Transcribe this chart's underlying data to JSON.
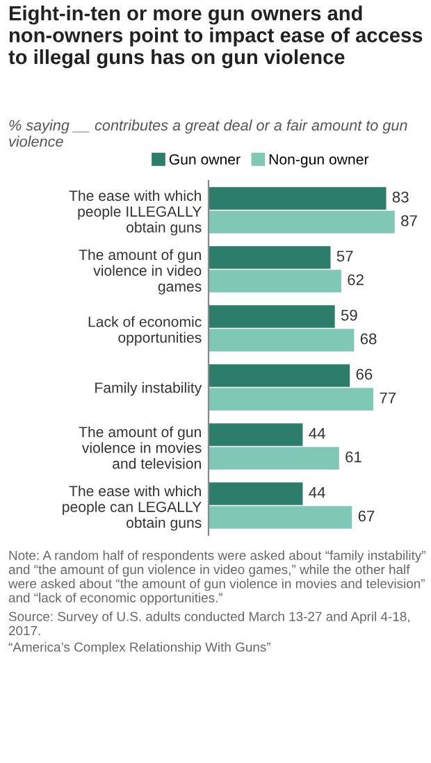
{
  "chart_data": {
    "type": "bar",
    "orientation": "horizontal",
    "title": "Eight-in-ten or more gun owners and non-owners point to impact ease of access to illegal guns has on gun violence",
    "subtitle": "% saying __ contributes a great deal or a fair amount to gun violence",
    "categories": [
      "The ease with which\npeople ILLEGALLY\nobtain guns",
      "The amount of gun\nviolence in video\ngames",
      "Lack of economic\nopportunities",
      "Family instability",
      "The amount of gun\nviolence in movies\nand television",
      "The ease with which\npeople can LEGALLY\nobtain guns"
    ],
    "series": [
      {
        "name": "Gun owner",
        "color": "#2d7d6b",
        "values": [
          83,
          57,
          59,
          66,
          44,
          44
        ]
      },
      {
        "name": "Non-gun owner",
        "color": "#7fc8b5",
        "values": [
          87,
          62,
          68,
          77,
          61,
          67
        ]
      }
    ],
    "data_labels": true,
    "legend": "top",
    "grid": false,
    "tick_labels": "y",
    "annotations": [
      "Note: A random half of respondents were asked about “family instability” and “the amount of gun violence in video games,” while the other half were asked about “the amount of gun violence in movies and television” and “lack of economic opportunities.”",
      "Source: Survey of U.S. adults conducted March 13-27 and April 4-18, 2017.",
      "“America’s Complex Relationship With Guns”"
    ]
  }
}
